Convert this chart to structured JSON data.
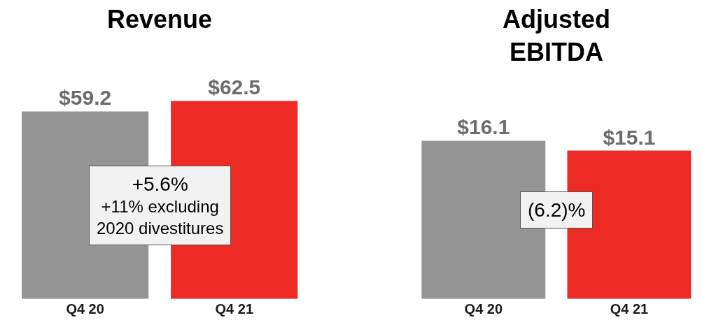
{
  "chart_data": [
    {
      "type": "bar",
      "title": "Revenue",
      "categories": [
        "Q4 20",
        "Q4 21"
      ],
      "values": [
        59.2,
        62.5
      ],
      "colors": [
        "#959595",
        "#ee2a24"
      ],
      "value_labels": [
        "$59.2",
        "$62.5"
      ],
      "annotations": [
        "+5.6%\n+11% excluding\n2020 divestitures"
      ]
    },
    {
      "type": "bar",
      "title": "Adjusted\nEBITDA",
      "categories": [
        "Q4 20",
        "Q4 21"
      ],
      "values": [
        16.1,
        15.1
      ],
      "colors": [
        "#959595",
        "#ee2a24"
      ],
      "value_labels": [
        "$16.1",
        "$15.1"
      ],
      "annotations": [
        "(6.2)%"
      ]
    }
  ]
}
